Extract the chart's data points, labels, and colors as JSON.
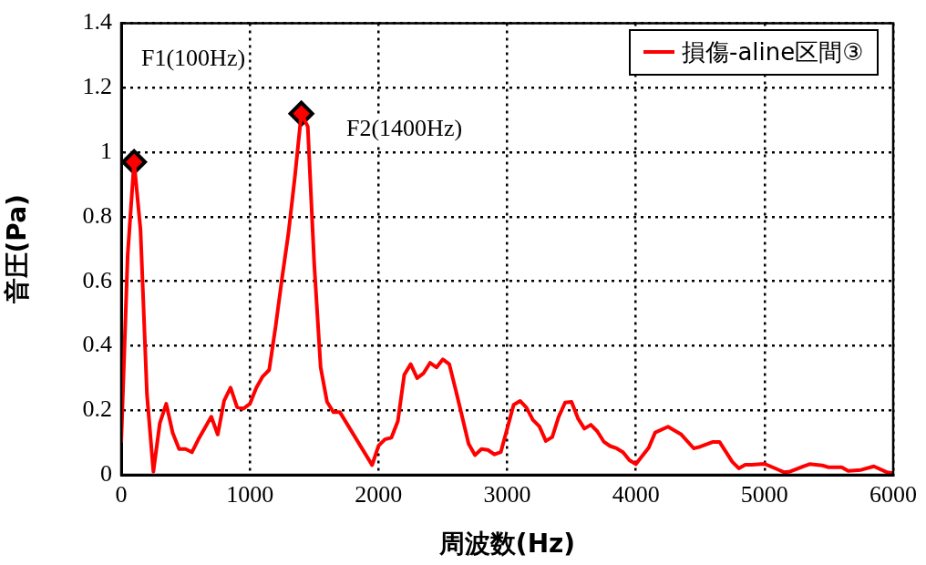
{
  "chart_data": {
    "type": "line",
    "xlabel": "周波数(Hz)",
    "ylabel": "音圧(Pa)",
    "xlim": [
      0,
      6000
    ],
    "xticks": [
      0,
      1000,
      2000,
      3000,
      4000,
      5000,
      6000
    ],
    "ylim": [
      0,
      1.4
    ],
    "yticks": [
      0,
      0.2,
      0.4,
      0.6,
      0.8,
      1,
      1.2,
      1.4
    ],
    "grid": true,
    "legend": "top right",
    "line_style": "solid",
    "annotations": [
      "F1(100Hz)",
      "F2(1400Hz)"
    ],
    "series": [
      {
        "name": "損傷-aline区間③",
        "color": "#ff0000",
        "marker": "none",
        "x": [
          0,
          50,
          100,
          150,
          200,
          250,
          300,
          350,
          400,
          450,
          500,
          550,
          600,
          700,
          750,
          800,
          850,
          900,
          950,
          1000,
          1050,
          1100,
          1150,
          1200,
          1250,
          1300,
          1350,
          1400,
          1450,
          1500,
          1550,
          1600,
          1650,
          1700,
          1950,
          2000,
          2050,
          2100,
          2150,
          2200,
          2250,
          2300,
          2350,
          2400,
          2450,
          2500,
          2550,
          2600,
          2650,
          2700,
          2750,
          2800,
          2850,
          2900,
          2950,
          3000,
          3050,
          3100,
          3150,
          3200,
          3250,
          3300,
          3350,
          3400,
          3450,
          3500,
          3550,
          3600,
          3650,
          3700,
          3750,
          3800,
          3850,
          3900,
          3950,
          4000,
          4100,
          4150,
          4250,
          4350,
          4450,
          4500,
          4600,
          4650,
          4750,
          4800,
          4850,
          4900,
          5000,
          5100,
          5150,
          5200,
          5300,
          5350,
          5450,
          5500,
          5600,
          5650,
          5750,
          5850,
          5950,
          6000
        ],
        "values": [
          0.1,
          0.68,
          0.97,
          0.76,
          0.25,
          0.01,
          0.16,
          0.22,
          0.13,
          0.08,
          0.08,
          0.07,
          0.11,
          0.18,
          0.125,
          0.23,
          0.27,
          0.21,
          0.205,
          0.22,
          0.27,
          0.305,
          0.325,
          0.46,
          0.61,
          0.75,
          0.925,
          1.12,
          1.08,
          0.655,
          0.333,
          0.226,
          0.194,
          0.194,
          0.03,
          0.09,
          0.11,
          0.115,
          0.166,
          0.31,
          0.343,
          0.3,
          0.315,
          0.347,
          0.333,
          0.358,
          0.343,
          0.263,
          0.18,
          0.096,
          0.061,
          0.08,
          0.077,
          0.063,
          0.07,
          0.143,
          0.217,
          0.229,
          0.208,
          0.17,
          0.15,
          0.105,
          0.117,
          0.18,
          0.224,
          0.226,
          0.175,
          0.143,
          0.155,
          0.135,
          0.103,
          0.089,
          0.082,
          0.07,
          0.045,
          0.033,
          0.084,
          0.131,
          0.149,
          0.126,
          0.082,
          0.087,
          0.102,
          0.102,
          0.04,
          0.02,
          0.031,
          0.031,
          0.034,
          0.017,
          0.008,
          0.01,
          0.026,
          0.033,
          0.029,
          0.023,
          0.023,
          0.012,
          0.015,
          0.026,
          0.008,
          0.005
        ]
      },
      {
        "type": "scatter",
        "color": "#ff0000",
        "marker": "diamond",
        "x": [
          100,
          1400
        ],
        "values": [
          0.97,
          1.12
        ]
      }
    ]
  }
}
